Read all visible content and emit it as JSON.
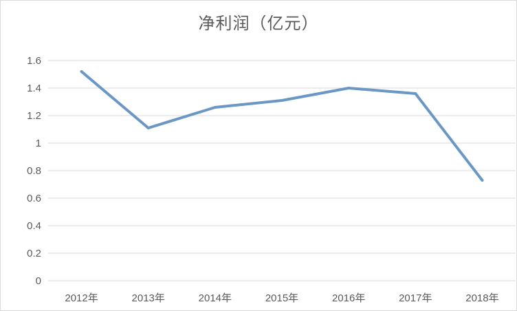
{
  "chart_data": {
    "type": "line",
    "title": "净利润（亿元）",
    "categories": [
      "2012年",
      "2013年",
      "2014年",
      "2015年",
      "2016年",
      "2017年",
      "2018年"
    ],
    "series": [
      {
        "values": [
          1.52,
          1.11,
          1.26,
          1.31,
          1.4,
          1.36,
          0.73
        ]
      }
    ],
    "ylim": [
      0,
      1.6
    ],
    "yticks": [
      "0",
      "0.2",
      "0.4",
      "0.6",
      "0.8",
      "1",
      "1.2",
      "1.4",
      "1.6"
    ],
    "grid": true,
    "legend": "none",
    "line_color": "#6a97c4",
    "grid_color": "#d9d9d9"
  }
}
